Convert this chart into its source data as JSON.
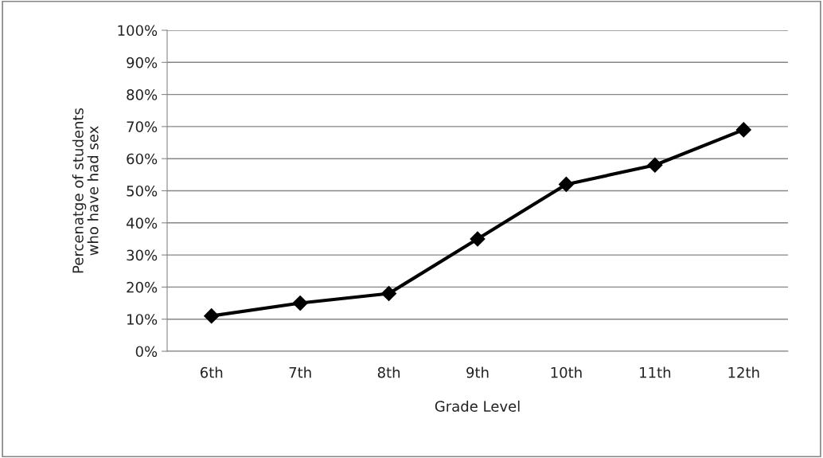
{
  "chart_data": {
    "type": "line",
    "xlabel": "Grade Level",
    "ylabel": "Percenatge of students\nwho have had sex",
    "categories": [
      "6th",
      "7th",
      "8th",
      "9th",
      "10th",
      "11th",
      "12th"
    ],
    "series": [
      {
        "color": "#000000",
        "values": [
          11,
          15,
          18,
          35,
          52,
          58,
          69
        ]
      }
    ],
    "ylim": [
      0,
      100
    ],
    "yticks": [
      {
        "value": 0,
        "label": "0%"
      },
      {
        "value": 10,
        "label": "10%"
      },
      {
        "value": 20,
        "label": "20%"
      },
      {
        "value": 30,
        "label": "30%"
      },
      {
        "value": 40,
        "label": "40%"
      },
      {
        "value": 50,
        "label": "50%"
      },
      {
        "value": 60,
        "label": "60%"
      },
      {
        "value": 70,
        "label": "70%"
      },
      {
        "value": 80,
        "label": "80%"
      },
      {
        "value": 90,
        "label": "90%"
      },
      {
        "value": 100,
        "label": "100%"
      }
    ],
    "grid": "y",
    "legend": false,
    "marker": "diamond",
    "line_style": "solid"
  }
}
